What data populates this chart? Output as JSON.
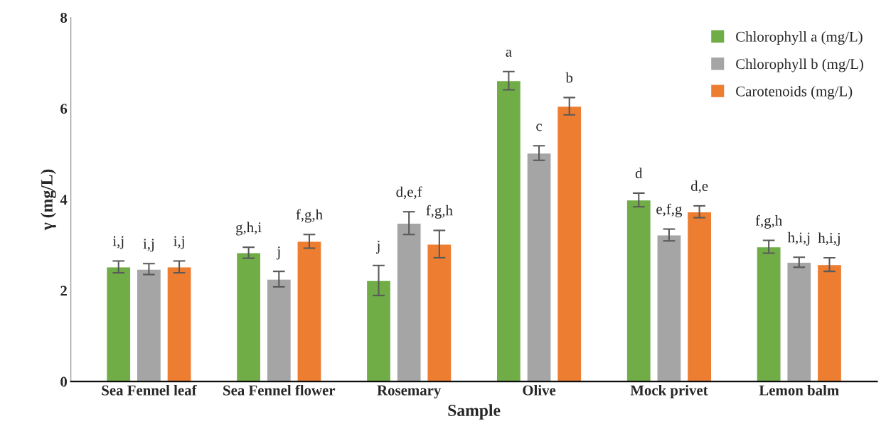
{
  "chart_data": {
    "type": "bar",
    "xlabel": "Sample",
    "ylabel": "γ (mg/L)",
    "categories": [
      "Sea Fennel leaf",
      "Sea Fennel flower",
      "Rosemary",
      "Olive",
      "Mock privet",
      "Lemon balm"
    ],
    "series": [
      {
        "name": "Chlorophyll a (mg/L)",
        "color": "#70ad47",
        "values": [
          2.52,
          2.83,
          2.22,
          6.61,
          3.99,
          2.96
        ],
        "errors": [
          0.13,
          0.12,
          0.33,
          0.2,
          0.15,
          0.14
        ],
        "value_labels": [
          "i,j",
          "g,h,i",
          "j",
          "a",
          "d",
          "f,g,h"
        ]
      },
      {
        "name": "Chlorophyll b (mg/L)",
        "color": "#a5a5a5",
        "values": [
          2.47,
          2.25,
          3.48,
          5.02,
          3.22,
          2.62
        ],
        "errors": [
          0.12,
          0.17,
          0.25,
          0.16,
          0.13,
          0.11
        ],
        "value_labels": [
          "i,j",
          "j",
          "d,e,f",
          "c",
          "e,f,g",
          "h,i,j"
        ]
      },
      {
        "name": "Carotenoids (mg/L)",
        "color": "#ed7d31",
        "values": [
          2.52,
          3.08,
          3.02,
          6.05,
          3.73,
          2.57
        ],
        "errors": [
          0.13,
          0.15,
          0.3,
          0.19,
          0.13,
          0.15
        ],
        "value_labels": [
          "i,j",
          "f,g,h",
          "f,g,h",
          "b",
          "d,e",
          "h,i,j"
        ]
      }
    ],
    "ylim": [
      0,
      8
    ],
    "yticks": [
      0,
      2,
      4,
      6,
      8
    ],
    "grid": false,
    "legend": "top right"
  }
}
